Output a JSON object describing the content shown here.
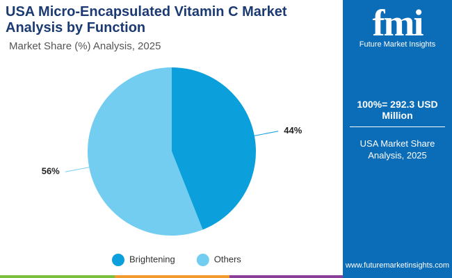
{
  "chart_data": {
    "type": "pie",
    "title": "USA Micro-Encapsulated Vitamin C Market Analysis by Function",
    "subtitle": "Market Share (%) Analysis, 2025",
    "categories": [
      "Brightening",
      "Others"
    ],
    "values": [
      44,
      56
    ],
    "value_labels": [
      "44%",
      "56%"
    ],
    "colors": [
      "#0b9fdb",
      "#72cdf1"
    ]
  },
  "sidebar": {
    "logo": "fmi",
    "brand": "Future Market Insights",
    "total": "100%= 292.3 USD Million",
    "caption": "USA Market Share Analysis, 2025",
    "url": "www.futuremarketinsights.com"
  }
}
